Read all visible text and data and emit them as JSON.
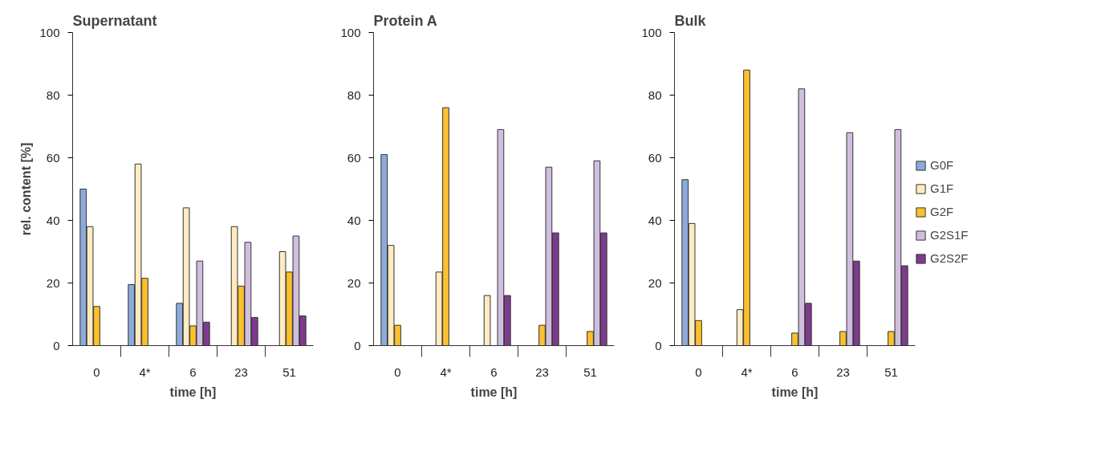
{
  "chart_data": [
    {
      "type": "bar",
      "title": "Supernatant",
      "xlabel": "time [h]",
      "ylabel": "rel. content [%]",
      "categories": [
        "0",
        "4*",
        "6",
        "23",
        "51"
      ],
      "ylim": [
        0,
        100
      ],
      "yticks": [
        0,
        20,
        40,
        60,
        80,
        100
      ],
      "grid": false,
      "legend": false,
      "series": [
        {
          "color": "#8eaadb",
          "values": [
            50,
            19.5,
            13.5,
            null,
            null
          ]
        },
        {
          "color": "#ffebc1",
          "values": [
            38,
            58,
            44,
            38,
            30
          ]
        },
        {
          "color": "#fbc02d",
          "values": [
            12.5,
            21.5,
            6.3,
            19,
            23.5
          ]
        },
        {
          "color": "#d1bedf",
          "values": [
            null,
            null,
            27,
            33,
            35
          ]
        },
        {
          "color": "#7e3b8e",
          "values": [
            null,
            null,
            7.5,
            9,
            9.5
          ]
        }
      ]
    },
    {
      "type": "bar",
      "title": "Protein A",
      "xlabel": "time [h]",
      "categories": [
        "0",
        "4*",
        "6",
        "23",
        "51"
      ],
      "ylim": [
        0,
        100
      ],
      "yticks": [
        0,
        20,
        40,
        60,
        80,
        100
      ],
      "grid": false,
      "legend": false,
      "series": [
        {
          "color": "#8eaadb",
          "values": [
            61,
            null,
            null,
            null,
            null
          ]
        },
        {
          "color": "#ffebc1",
          "values": [
            32,
            23.5,
            16,
            null,
            null
          ]
        },
        {
          "color": "#fbc02d",
          "values": [
            6.5,
            76,
            null,
            6.5,
            4.5
          ]
        },
        {
          "color": "#d1bedf",
          "values": [
            null,
            null,
            69,
            57,
            59
          ]
        },
        {
          "color": "#7e3b8e",
          "values": [
            null,
            null,
            16,
            36,
            36
          ]
        }
      ]
    },
    {
      "type": "bar",
      "title": "Bulk",
      "xlabel": "time [h]",
      "categories": [
        "0",
        "4*",
        "6",
        "23",
        "51"
      ],
      "ylim": [
        0,
        100
      ],
      "yticks": [
        0,
        20,
        40,
        60,
        80,
        100
      ],
      "grid": false,
      "legend": "right",
      "series": [
        {
          "name": "G0F",
          "color": "#8eaadb",
          "values": [
            53,
            null,
            null,
            null,
            null
          ]
        },
        {
          "name": "G1F",
          "color": "#ffebc1",
          "values": [
            39,
            11.5,
            null,
            null,
            null
          ]
        },
        {
          "name": "G2F",
          "color": "#fbc02d",
          "values": [
            8,
            88,
            4,
            4.5,
            4.5
          ]
        },
        {
          "name": "G2S1F",
          "color": "#d1bedf",
          "values": [
            null,
            null,
            82,
            68,
            69
          ]
        },
        {
          "name": "G2S2F",
          "color": "#7e3b8e",
          "values": [
            null,
            null,
            13.5,
            27,
            25.5
          ]
        }
      ]
    }
  ]
}
